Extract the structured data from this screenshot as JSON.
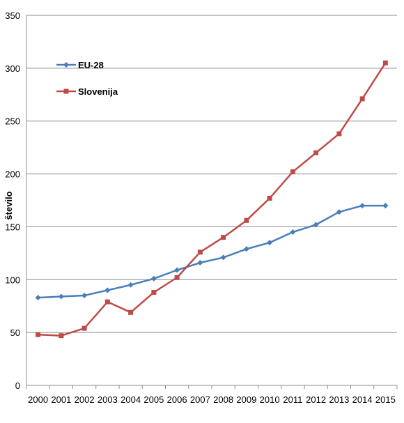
{
  "chart_data": {
    "type": "line",
    "title": "",
    "xlabel": "",
    "ylabel": "število",
    "x": [
      2000,
      2001,
      2002,
      2003,
      2004,
      2005,
      2006,
      2007,
      2008,
      2009,
      2010,
      2011,
      2012,
      2013,
      2014,
      2015
    ],
    "ylim": [
      0,
      350
    ],
    "y_ticks": [
      0,
      50,
      100,
      150,
      200,
      250,
      300,
      350
    ],
    "grid": true,
    "legend_position": "top-left",
    "series": [
      {
        "name": "EU-28",
        "color": "#4a7ebb",
        "marker": "diamond",
        "values": [
          83,
          84,
          85,
          90,
          95,
          101,
          109,
          116,
          121,
          129,
          135,
          145,
          152,
          164,
          170,
          170
        ]
      },
      {
        "name": "Slovenija",
        "color": "#be4b48",
        "marker": "square",
        "values": [
          48,
          47,
          54,
          79,
          69,
          88,
          102,
          126,
          140,
          156,
          177,
          202,
          220,
          238,
          271,
          305
        ]
      }
    ]
  }
}
